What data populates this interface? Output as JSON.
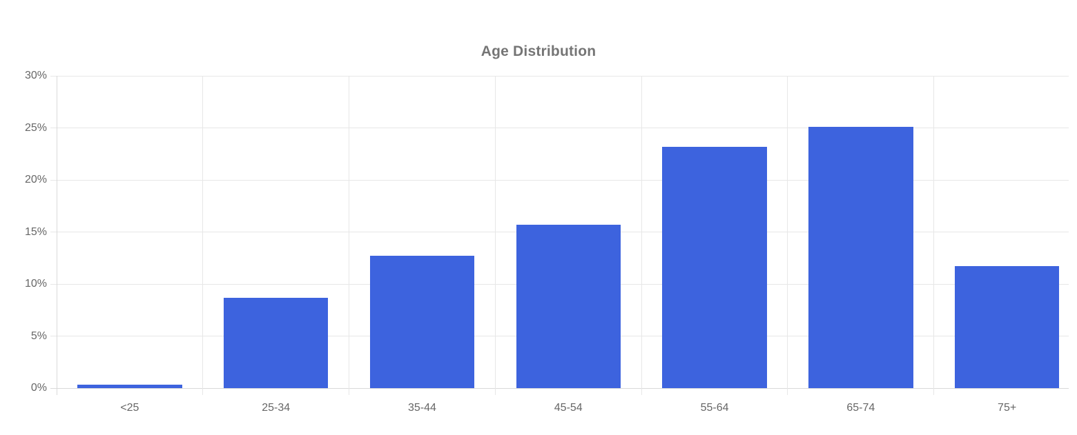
{
  "chart_data": {
    "type": "bar",
    "title": "Age Distribution",
    "categories": [
      "<25",
      "25-34",
      "35-44",
      "45-54",
      "55-64",
      "65-74",
      "75+"
    ],
    "values": [
      0.3,
      8.7,
      12.7,
      15.7,
      23.2,
      25.1,
      11.7
    ],
    "value_unit": "%",
    "xlabel": "",
    "ylabel": "",
    "ylim": [
      0,
      30
    ],
    "ytick_step": 5,
    "ytick_labels": [
      "0%",
      "5%",
      "10%",
      "15%",
      "20%",
      "25%",
      "30%"
    ],
    "grid": true,
    "legend": "none",
    "colors": {
      "bar": "#3D63DE",
      "grid": "#E7E7E7",
      "axis_line": "#D9D9D9",
      "tick_text": "#666666",
      "title_text": "#757575",
      "background": "#FFFFFF"
    }
  }
}
